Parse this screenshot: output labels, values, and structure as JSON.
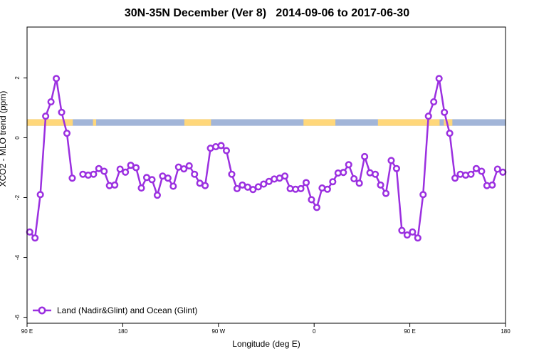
{
  "chart_data": {
    "type": "line",
    "title": "30N-35N December (Ver 8)   2014-09-06 to 2017-06-30",
    "xlabel": "Longitude (deg E)",
    "ylabel": "XCO2 - MLO trend (ppm)",
    "xlim": [
      90,
      540
    ],
    "ylim": [
      -6.2,
      3.7
    ],
    "x_ticks": [
      {
        "value": 90,
        "label": "90 E"
      },
      {
        "value": 180,
        "label": "180"
      },
      {
        "value": 270,
        "label": "90 W"
      },
      {
        "value": 360,
        "label": "0"
      },
      {
        "value": 450,
        "label": "90 E"
      },
      {
        "value": 540,
        "label": "180"
      }
    ],
    "y_ticks": [
      {
        "value": 2,
        "label": "2"
      },
      {
        "value": 0,
        "label": "0"
      },
      {
        "value": -2,
        "label": "-2"
      },
      {
        "value": -4,
        "label": "-4"
      },
      {
        "value": -6,
        "label": "-6"
      }
    ],
    "land_ocean_band": {
      "y_range": [
        0.4,
        0.62
      ],
      "land_color": "#ffd77a",
      "ocean_color": "#a2b5d8",
      "land_segments": [
        [
          90,
          133
        ],
        [
          152,
          155
        ],
        [
          238,
          263
        ],
        [
          350,
          380
        ],
        [
          420,
          478
        ],
        [
          482,
          490
        ]
      ]
    },
    "series": [
      {
        "name": "Land (Nadir&Glint) and Ocean (Glint)",
        "color": "#9b30e0",
        "x": [
          92.5,
          97.5,
          102.5,
          107.5,
          112.5,
          117.5,
          122.5,
          127.5,
          132.5,
          142.5,
          147.5,
          152.5,
          157.5,
          162.5,
          167.5,
          172.5,
          177.5,
          182.5,
          187.5,
          192.5,
          197.5,
          202.5,
          207.5,
          212.5,
          217.5,
          222.5,
          227.5,
          232.5,
          237.5,
          242.5,
          247.5,
          252.5,
          257.5,
          262.5,
          267.5,
          272.5,
          277.5,
          282.5,
          287.5,
          292.5,
          297.5,
          302.5,
          307.5,
          312.5,
          317.5,
          322.5,
          327.5,
          332.5,
          337.5,
          342.5,
          347.5,
          352.5,
          357.5,
          362.5,
          367.5,
          372.5,
          377.5,
          382.5,
          387.5,
          392.5,
          397.5,
          402.5,
          407.5,
          412.5,
          417.5,
          422.5,
          427.5,
          432.5,
          437.5,
          442.5,
          447.5,
          452.5,
          457.5,
          462.5,
          467.5,
          472.5,
          477.5,
          482.5,
          487.5,
          492.5,
          497.5,
          502.5,
          507.5,
          512.5,
          517.5,
          522.5,
          527.5,
          532.5,
          537.5
        ],
        "y": [
          -3.15,
          -3.35,
          -1.9,
          0.72,
          1.2,
          1.98,
          0.85,
          0.15,
          -1.35,
          -1.22,
          -1.25,
          -1.22,
          -1.03,
          -1.12,
          -1.6,
          -1.58,
          -1.05,
          -1.15,
          -0.92,
          -1.0,
          -1.68,
          -1.33,
          -1.4,
          -1.92,
          -1.28,
          -1.35,
          -1.62,
          -0.98,
          -1.04,
          -0.94,
          -1.22,
          -1.52,
          -1.6,
          -0.35,
          -0.3,
          -0.26,
          -0.43,
          -1.22,
          -1.7,
          -1.58,
          -1.65,
          -1.73,
          -1.64,
          -1.55,
          -1.46,
          -1.38,
          -1.35,
          -1.28,
          -1.7,
          -1.72,
          -1.7,
          -1.5,
          -2.07,
          -2.33,
          -1.68,
          -1.72,
          -1.47,
          -1.18,
          -1.16,
          -0.9,
          -1.37,
          -1.52,
          -0.63,
          -1.17,
          -1.22,
          -1.58,
          -1.86,
          -0.76,
          -1.03,
          -3.1,
          -3.25,
          -3.15,
          -3.35,
          -1.9,
          0.72,
          1.2,
          1.98,
          0.85,
          0.15,
          -1.35,
          -1.22,
          -1.25,
          -1.22,
          -1.03,
          -1.12,
          -1.6,
          -1.58,
          -1.05,
          -1.15
        ]
      }
    ],
    "legend": {
      "position": "bottom-left",
      "entries": [
        "Land (Nadir&Glint) and Ocean (Glint)"
      ]
    },
    "grid": false
  }
}
